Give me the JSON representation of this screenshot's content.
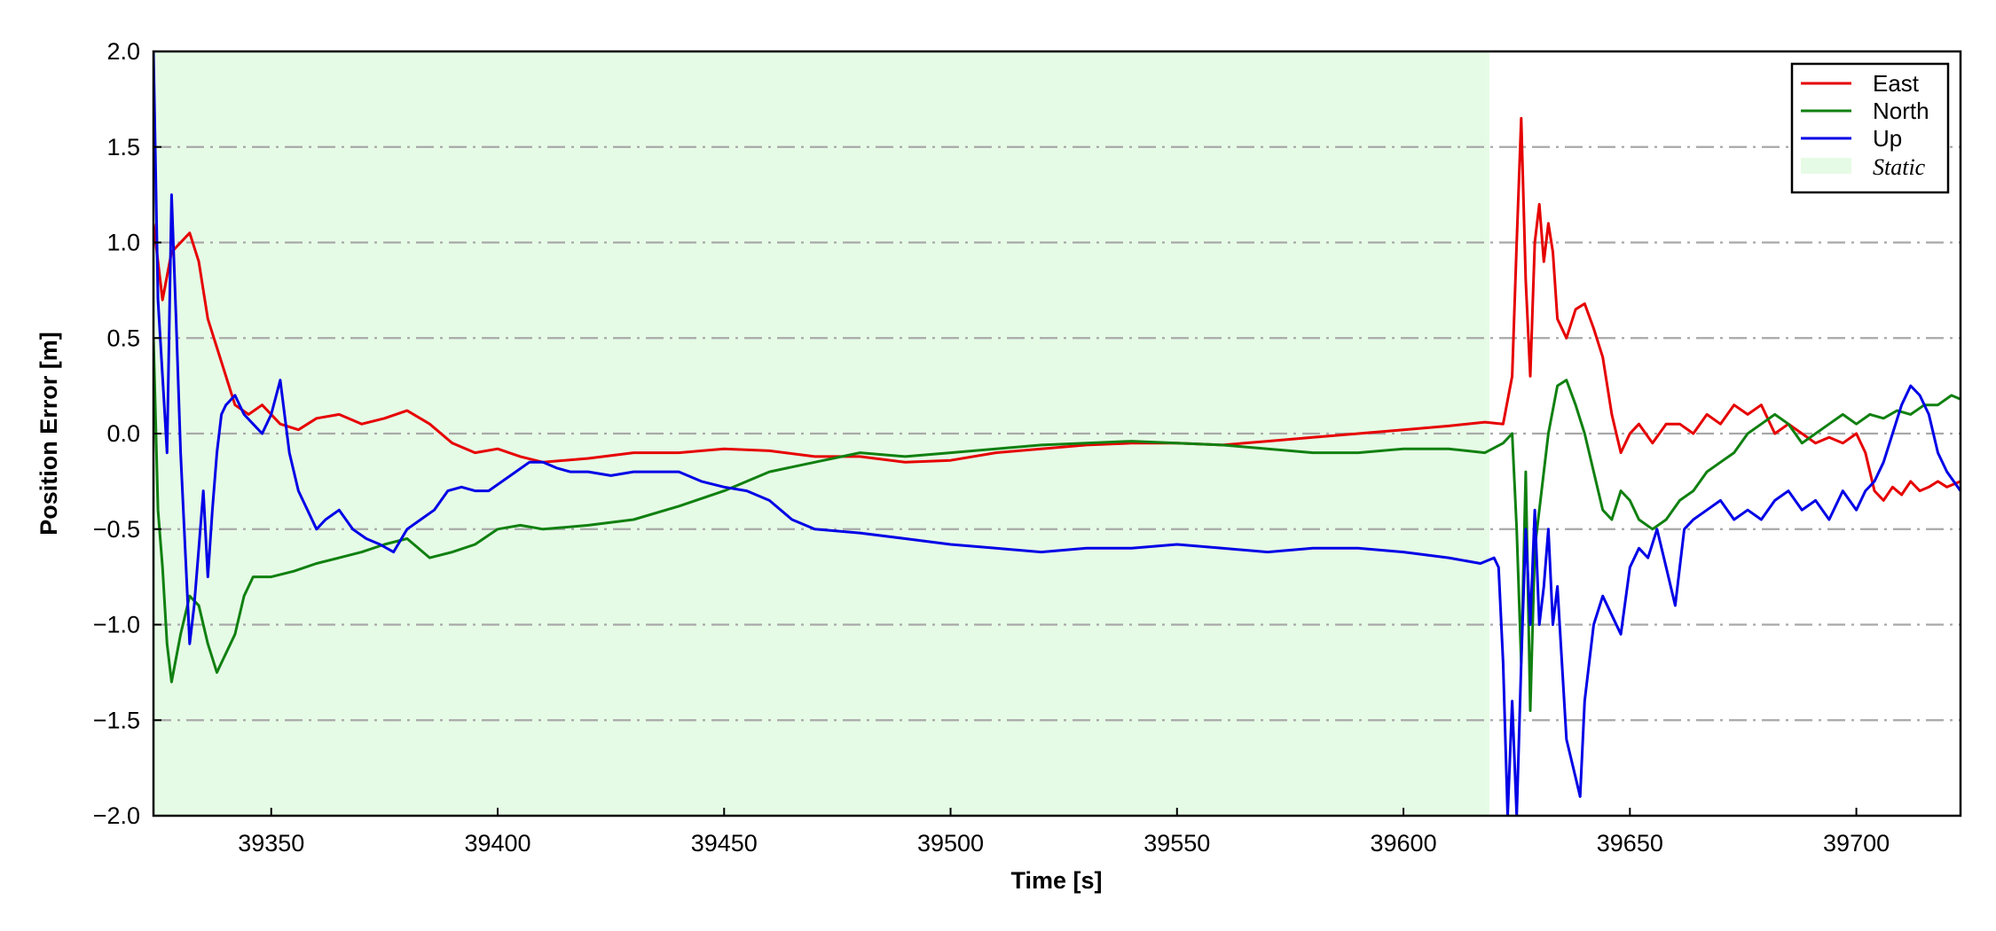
{
  "chart_data": {
    "type": "line",
    "xlabel": "Time [s]",
    "ylabel": "Position Error [m]",
    "xlim": [
      39324,
      39723
    ],
    "ylim": [
      -2.0,
      2.0
    ],
    "xticks": [
      39350,
      39400,
      39450,
      39500,
      39550,
      39600,
      39650,
      39700
    ],
    "xtick_labels": [
      "39350",
      "39400",
      "39450",
      "39500",
      "39550",
      "39600",
      "39650",
      "39700"
    ],
    "yticks": [
      2.0,
      1.5,
      1.0,
      0.5,
      0.0,
      -0.5,
      -1.0,
      -1.5,
      -2.0
    ],
    "ytick_labels": [
      "2.0",
      "1.5",
      "1.0",
      "0.5",
      "0.0",
      "−0.5",
      "−1.0",
      "−1.5",
      "−2.0"
    ],
    "grid": "horizontal dash-dot",
    "legend_position": "top-right",
    "shaded_region": {
      "label": "Static",
      "x0": 39324,
      "x1": 39619,
      "color": "#e6fbe6"
    },
    "series": [
      {
        "name": "East",
        "color": "#e60000",
        "x": [
          39324,
          39326,
          39328,
          39330,
          39332,
          39334,
          39336,
          39338,
          39340,
          39342,
          39345,
          39348,
          39352,
          39356,
          39360,
          39365,
          39370,
          39375,
          39380,
          39385,
          39390,
          39395,
          39400,
          39405,
          39410,
          39420,
          39430,
          39440,
          39450,
          39460,
          39470,
          39480,
          39490,
          39500,
          39510,
          39520,
          39530,
          39540,
          39550,
          39560,
          39570,
          39580,
          39590,
          39600,
          39610,
          39618,
          39622,
          39624,
          39625,
          39626,
          39627,
          39628,
          39629,
          39630,
          39631,
          39632,
          39633,
          39634,
          39636,
          39638,
          39640,
          39642,
          39644,
          39646,
          39648,
          39650,
          39652,
          39655,
          39658,
          39661,
          39664,
          39667,
          39670,
          39673,
          39676,
          39679,
          39682,
          39685,
          39688,
          39691,
          39694,
          39697,
          39700,
          39702,
          39704,
          39706,
          39708,
          39710,
          39712,
          39714,
          39716,
          39718,
          39720,
          39723
        ],
        "y": [
          1.1,
          0.7,
          0.95,
          1.0,
          1.05,
          0.9,
          0.6,
          0.45,
          0.3,
          0.15,
          0.1,
          0.15,
          0.05,
          0.02,
          0.08,
          0.1,
          0.05,
          0.08,
          0.12,
          0.05,
          -0.05,
          -0.1,
          -0.08,
          -0.12,
          -0.15,
          -0.13,
          -0.1,
          -0.1,
          -0.08,
          -0.09,
          -0.12,
          -0.12,
          -0.15,
          -0.14,
          -0.1,
          -0.08,
          -0.06,
          -0.05,
          -0.05,
          -0.06,
          -0.04,
          -0.02,
          0.0,
          0.02,
          0.04,
          0.06,
          0.05,
          0.3,
          1.0,
          1.65,
          0.8,
          0.3,
          1.0,
          1.2,
          0.9,
          1.1,
          0.95,
          0.6,
          0.5,
          0.65,
          0.68,
          0.55,
          0.4,
          0.1,
          -0.1,
          0.0,
          0.05,
          -0.05,
          0.05,
          0.05,
          0.0,
          0.1,
          0.05,
          0.15,
          0.1,
          0.15,
          0.0,
          0.05,
          0.0,
          -0.05,
          -0.02,
          -0.05,
          0.0,
          -0.1,
          -0.3,
          -0.35,
          -0.28,
          -0.32,
          -0.25,
          -0.3,
          -0.28,
          -0.25,
          -0.28,
          -0.25
        ]
      },
      {
        "name": "North",
        "color": "#108010",
        "x": [
          39324,
          39325,
          39326,
          39327,
          39328,
          39330,
          39332,
          39334,
          39336,
          39338,
          39340,
          39342,
          39344,
          39346,
          39348,
          39350,
          39355,
          39360,
          39365,
          39370,
          39375,
          39380,
          39385,
          39390,
          39395,
          39400,
          39405,
          39410,
          39420,
          39430,
          39440,
          39450,
          39460,
          39470,
          39480,
          39490,
          39500,
          39510,
          39520,
          39530,
          39540,
          39550,
          39560,
          39570,
          39580,
          39590,
          39600,
          39610,
          39618,
          39622,
          39624,
          39625,
          39626,
          39627,
          39628,
          39629,
          39630,
          39631,
          39632,
          39634,
          39636,
          39638,
          39640,
          39642,
          39644,
          39646,
          39648,
          39650,
          39652,
          39655,
          39658,
          39661,
          39664,
          39667,
          39670,
          39673,
          39676,
          39679,
          39682,
          39685,
          39688,
          39691,
          39694,
          39697,
          39700,
          39703,
          39706,
          39709,
          39712,
          39715,
          39718,
          39721,
          39723
        ],
        "y": [
          0.5,
          -0.4,
          -0.7,
          -1.1,
          -1.3,
          -1.05,
          -0.85,
          -0.9,
          -1.1,
          -1.25,
          -1.15,
          -1.05,
          -0.85,
          -0.75,
          -0.75,
          -0.75,
          -0.72,
          -0.68,
          -0.65,
          -0.62,
          -0.58,
          -0.55,
          -0.65,
          -0.62,
          -0.58,
          -0.5,
          -0.48,
          -0.5,
          -0.48,
          -0.45,
          -0.38,
          -0.3,
          -0.2,
          -0.15,
          -0.1,
          -0.12,
          -0.1,
          -0.08,
          -0.06,
          -0.05,
          -0.04,
          -0.05,
          -0.06,
          -0.08,
          -0.1,
          -0.1,
          -0.08,
          -0.08,
          -0.1,
          -0.05,
          0.0,
          -0.5,
          -1.2,
          -0.2,
          -1.45,
          -0.6,
          -0.4,
          -0.2,
          0.0,
          0.25,
          0.28,
          0.15,
          0.0,
          -0.2,
          -0.4,
          -0.45,
          -0.3,
          -0.35,
          -0.45,
          -0.5,
          -0.45,
          -0.35,
          -0.3,
          -0.2,
          -0.15,
          -0.1,
          0.0,
          0.05,
          0.1,
          0.05,
          -0.05,
          0.0,
          0.05,
          0.1,
          0.05,
          0.1,
          0.08,
          0.12,
          0.1,
          0.15,
          0.15,
          0.2,
          0.18
        ]
      },
      {
        "name": "Up",
        "color": "#0000e6",
        "x": [
          39324,
          39325,
          39326,
          39327,
          39328,
          39329,
          39330,
          39331,
          39332,
          39333,
          39334,
          39335,
          39336,
          39337,
          39338,
          39339,
          39340,
          39342,
          39344,
          39346,
          39348,
          39350,
          39352,
          39354,
          39356,
          39358,
          39360,
          39362,
          39365,
          39368,
          39371,
          39374,
          39377,
          39380,
          39383,
          39386,
          39389,
          39392,
          39395,
          39398,
          39401,
          39404,
          39407,
          39410,
          39413,
          39416,
          39420,
          39425,
          39430,
          39435,
          39440,
          39445,
          39450,
          39455,
          39460,
          39465,
          39470,
          39480,
          39490,
          39500,
          39510,
          39520,
          39530,
          39540,
          39550,
          39560,
          39570,
          39580,
          39590,
          39600,
          39610,
          39617,
          39620,
          39621,
          39622,
          39623,
          39624,
          39625,
          39626,
          39627,
          39628,
          39629,
          39630,
          39631,
          39632,
          39633,
          39634,
          39636,
          39638,
          39639,
          39640,
          39641,
          39642,
          39644,
          39646,
          39648,
          39650,
          39652,
          39654,
          39656,
          39658,
          39660,
          39662,
          39664,
          39667,
          39670,
          39673,
          39676,
          39679,
          39682,
          39685,
          39688,
          39691,
          39694,
          39697,
          39700,
          39702,
          39704,
          39706,
          39708,
          39710,
          39712,
          39714,
          39716,
          39718,
          39720,
          39723
        ],
        "y": [
          2.0,
          0.7,
          0.3,
          -0.1,
          1.25,
          0.6,
          -0.1,
          -0.6,
          -1.1,
          -0.9,
          -0.6,
          -0.3,
          -0.75,
          -0.4,
          -0.1,
          0.1,
          0.15,
          0.2,
          0.1,
          0.05,
          0.0,
          0.1,
          0.28,
          -0.1,
          -0.3,
          -0.4,
          -0.5,
          -0.45,
          -0.4,
          -0.5,
          -0.55,
          -0.58,
          -0.62,
          -0.5,
          -0.45,
          -0.4,
          -0.3,
          -0.28,
          -0.3,
          -0.3,
          -0.25,
          -0.2,
          -0.15,
          -0.15,
          -0.18,
          -0.2,
          -0.2,
          -0.22,
          -0.2,
          -0.2,
          -0.2,
          -0.25,
          -0.28,
          -0.3,
          -0.35,
          -0.45,
          -0.5,
          -0.52,
          -0.55,
          -0.58,
          -0.6,
          -0.62,
          -0.6,
          -0.6,
          -0.58,
          -0.6,
          -0.62,
          -0.6,
          -0.6,
          -0.62,
          -0.65,
          -0.68,
          -0.65,
          -0.7,
          -1.2,
          -2.0,
          -1.4,
          -2.0,
          -1.2,
          -0.5,
          -1.0,
          -0.4,
          -1.0,
          -0.8,
          -0.5,
          -1.0,
          -0.8,
          -1.6,
          -1.8,
          -1.9,
          -1.4,
          -1.2,
          -1.0,
          -0.85,
          -0.95,
          -1.05,
          -0.7,
          -0.6,
          -0.65,
          -0.5,
          -0.7,
          -0.9,
          -0.5,
          -0.45,
          -0.4,
          -0.35,
          -0.45,
          -0.4,
          -0.45,
          -0.35,
          -0.3,
          -0.4,
          -0.35,
          -0.45,
          -0.3,
          -0.4,
          -0.3,
          -0.25,
          -0.15,
          0.0,
          0.15,
          0.25,
          0.2,
          0.1,
          -0.1,
          -0.2,
          -0.3
        ]
      }
    ]
  }
}
